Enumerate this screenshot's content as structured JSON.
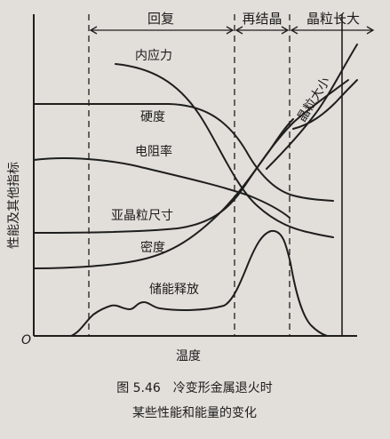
{
  "stages": {
    "recovery": "回复",
    "recrystallization": "再结晶",
    "grain_growth": "晶粒长大"
  },
  "curves": {
    "internal_stress": "内应力",
    "hardness": "硬度",
    "resistivity": "电阻率",
    "subgrain_size": "亚晶粒尺寸",
    "density": "密度",
    "stored_energy": "储能释放",
    "grain_size": "晶粒大小"
  },
  "axes": {
    "ylabel": "性能及其他指标",
    "xlabel": "温度",
    "origin": "O"
  },
  "caption": {
    "line1": "图 5.46　冷变形金属退火时",
    "line2": "某些性能和能量的变化"
  }
}
